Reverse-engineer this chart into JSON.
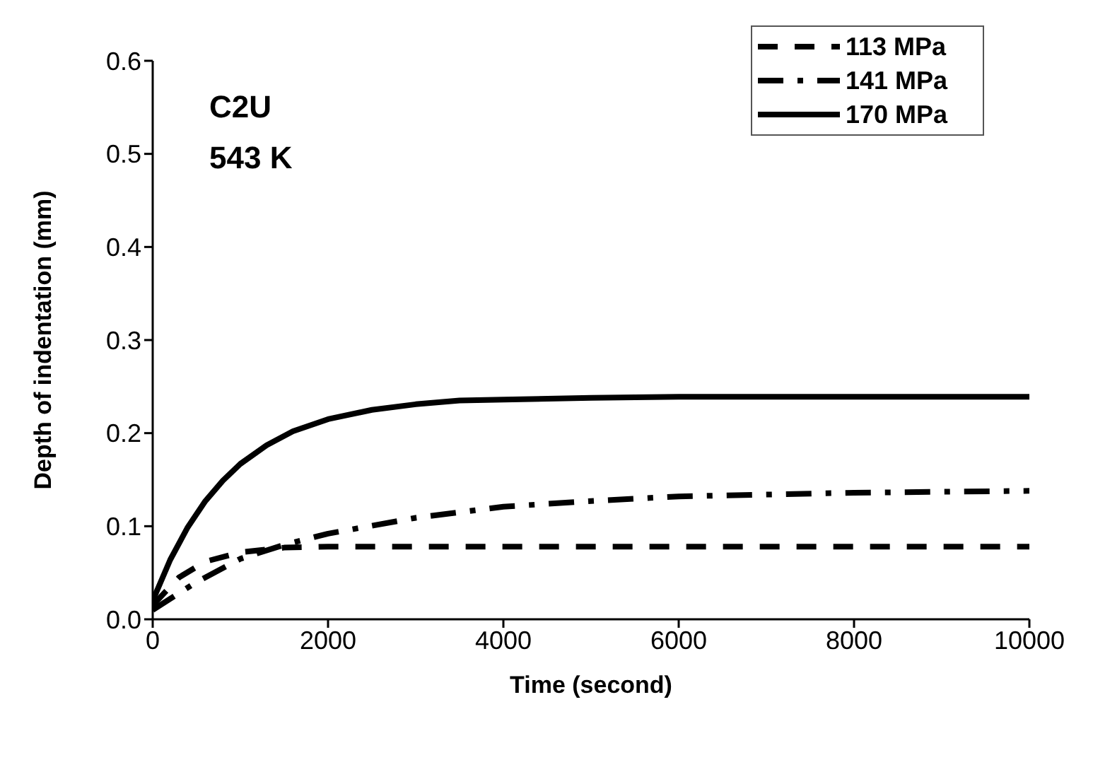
{
  "chart_data": {
    "type": "line",
    "xlabel": "Time (second)",
    "ylabel": "Depth of indentation (mm)",
    "annotations": [
      "C2U",
      "543 K"
    ],
    "xlim": [
      0,
      10000
    ],
    "xticks": [
      0,
      2000,
      4000,
      6000,
      8000,
      10000
    ],
    "ylim": [
      0,
      0.6
    ],
    "yticks": [
      {
        "value": 0,
        "label": "0.0"
      },
      {
        "value": 0.1,
        "label": "0.1"
      },
      {
        "value": 0.2,
        "label": "0.2"
      },
      {
        "value": 0.3,
        "label": "0.3"
      },
      {
        "value": 0.4,
        "label": "0.4"
      },
      {
        "value": 0.5,
        "label": "0.5"
      },
      {
        "value": 0.6,
        "label": "0.6"
      }
    ],
    "grid": false,
    "legend": "top right",
    "marker": "none",
    "series": [
      {
        "name": "113 MPa",
        "color": "#000000",
        "line_style": "dashed",
        "x": [
          0,
          300,
          600,
          1000,
          1500,
          2000,
          4000,
          6000,
          8000,
          10000
        ],
        "values": [
          0.015,
          0.045,
          0.062,
          0.072,
          0.077,
          0.078,
          0.078,
          0.078,
          0.078,
          0.078
        ]
      },
      {
        "name": "141 MPa",
        "color": "#000000",
        "line_style": "dashdot",
        "x": [
          0,
          500,
          1000,
          1500,
          2000,
          3000,
          4000,
          5000,
          6000,
          7000,
          8000,
          10000
        ],
        "values": [
          0.01,
          0.04,
          0.065,
          0.08,
          0.092,
          0.109,
          0.121,
          0.127,
          0.132,
          0.134,
          0.136,
          0.138
        ]
      },
      {
        "name": "170 MPa",
        "color": "#000000",
        "line_style": "solid",
        "x": [
          0,
          200,
          400,
          600,
          800,
          1000,
          1300,
          1600,
          2000,
          2500,
          3000,
          3500,
          4000,
          5000,
          6000,
          8000,
          10000
        ],
        "values": [
          0.02,
          0.064,
          0.099,
          0.127,
          0.149,
          0.167,
          0.187,
          0.202,
          0.215,
          0.225,
          0.231,
          0.235,
          0.236,
          0.238,
          0.239,
          0.239,
          0.239
        ]
      }
    ]
  }
}
